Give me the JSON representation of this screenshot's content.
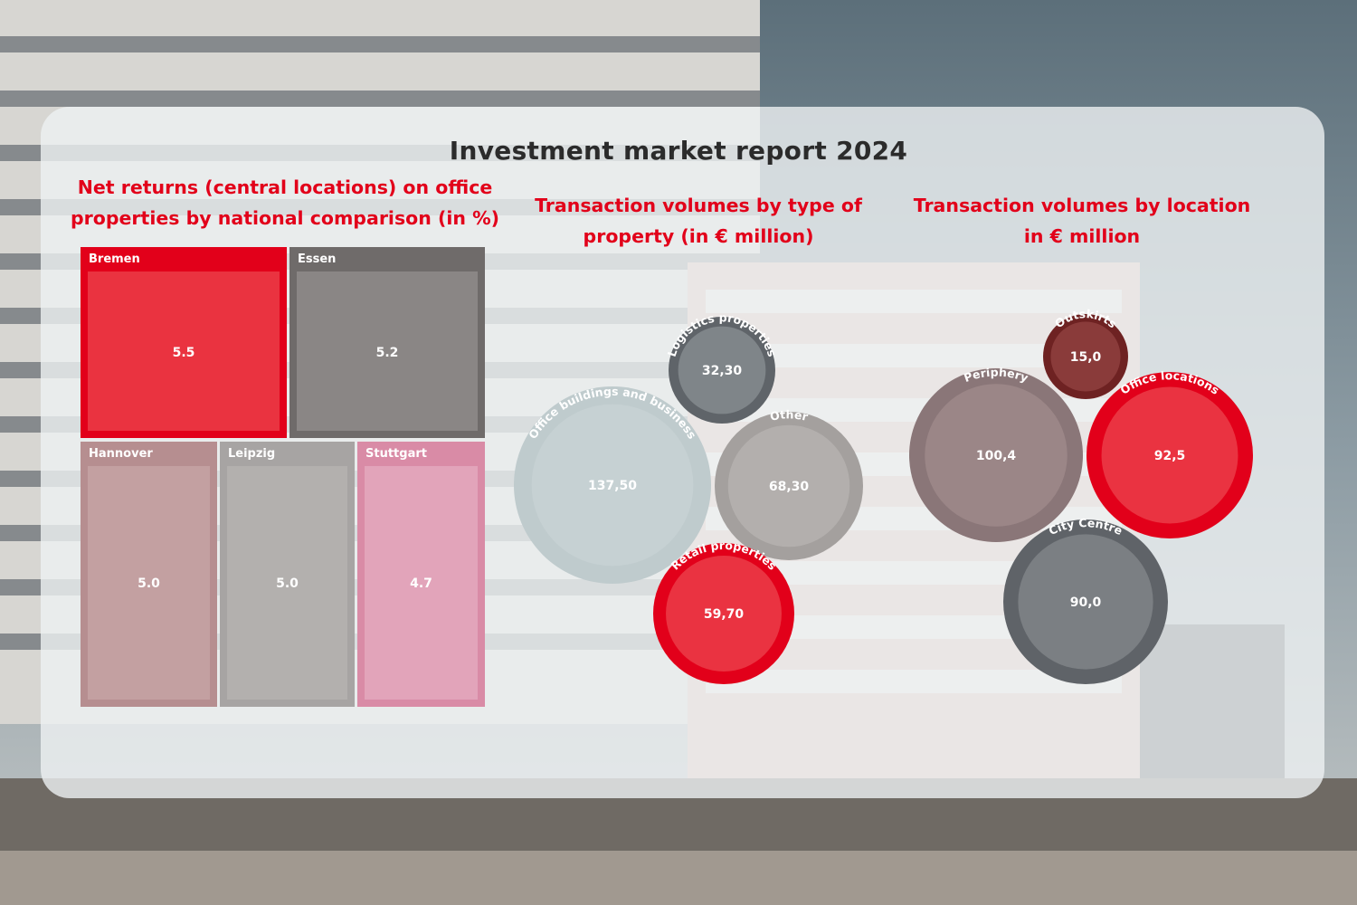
{
  "title": "Investment market report 2024",
  "colors": {
    "red": "#e2001a",
    "dark_red": "#7a2a2a",
    "grey_dark": "#6b6e72",
    "grey_mid": "#a9a6a4",
    "rose_grey": "#a3898a",
    "light_blue_grey": "#c3cfd1",
    "pink": "#df9fb5"
  },
  "chart_data": [
    {
      "type": "treemap",
      "title": "Net returns (central locations) on office properties by national comparison  (in %)",
      "items": [
        {
          "name": "Bremen",
          "value_label": "5.5",
          "value": 5.5,
          "color": "#e2001a",
          "inner": "#ea3340"
        },
        {
          "name": "Essen",
          "value_label": "5.2",
          "value": 5.2,
          "color": "#6f6b6a",
          "inner": "#8a8685"
        },
        {
          "name": "Hannover",
          "value_label": "5.0",
          "value": 5.0,
          "color": "#b68e90",
          "inner": "#c3a0a1"
        },
        {
          "name": "Leipzig",
          "value_label": "5.0",
          "value": 5.0,
          "color": "#a7a4a3",
          "inner": "#b3b0ae"
        },
        {
          "name": "Stuttgart",
          "value_label": "4.7",
          "value": 4.7,
          "color": "#d98ba6",
          "inner": "#e2a4ba"
        }
      ]
    },
    {
      "type": "bubble",
      "title": "Transaction volumes by type of property (in € million)",
      "items": [
        {
          "name": "Logistics properties",
          "value_label": "32,30",
          "value": 32.3,
          "outer": "#5f6469",
          "inner": "#7f8589"
        },
        {
          "name": "Office buildings and business",
          "value_label": "137,50",
          "value": 137.5,
          "outer": "#bfcbcd",
          "inner": "#c6d1d3"
        },
        {
          "name": "Other",
          "value_label": "68,30",
          "value": 68.3,
          "outer": "#a4a09e",
          "inner": "#b3afad"
        },
        {
          "name": "Retail properties",
          "value_label": "59,70",
          "value": 59.7,
          "outer": "#e2001a",
          "inner": "#ea3341"
        }
      ]
    },
    {
      "type": "bubble",
      "title": "Transaction volumes by location in € million",
      "items": [
        {
          "name": "Outskirts",
          "value_label": "15,0",
          "value": 15.0,
          "outer": "#6e2222",
          "inner": "#8a3b3a"
        },
        {
          "name": "Periphery",
          "value_label": "100,4",
          "value": 100.4,
          "outer": "#8a7678",
          "inner": "#9b8687"
        },
        {
          "name": "Office locations",
          "value_label": "92,5",
          "value": 92.5,
          "outer": "#e2001a",
          "inner": "#ea3341"
        },
        {
          "name": "City Centre",
          "value_label": "90,0",
          "value": 90.0,
          "outer": "#5f6368",
          "inner": "#7b7f83"
        }
      ]
    }
  ]
}
